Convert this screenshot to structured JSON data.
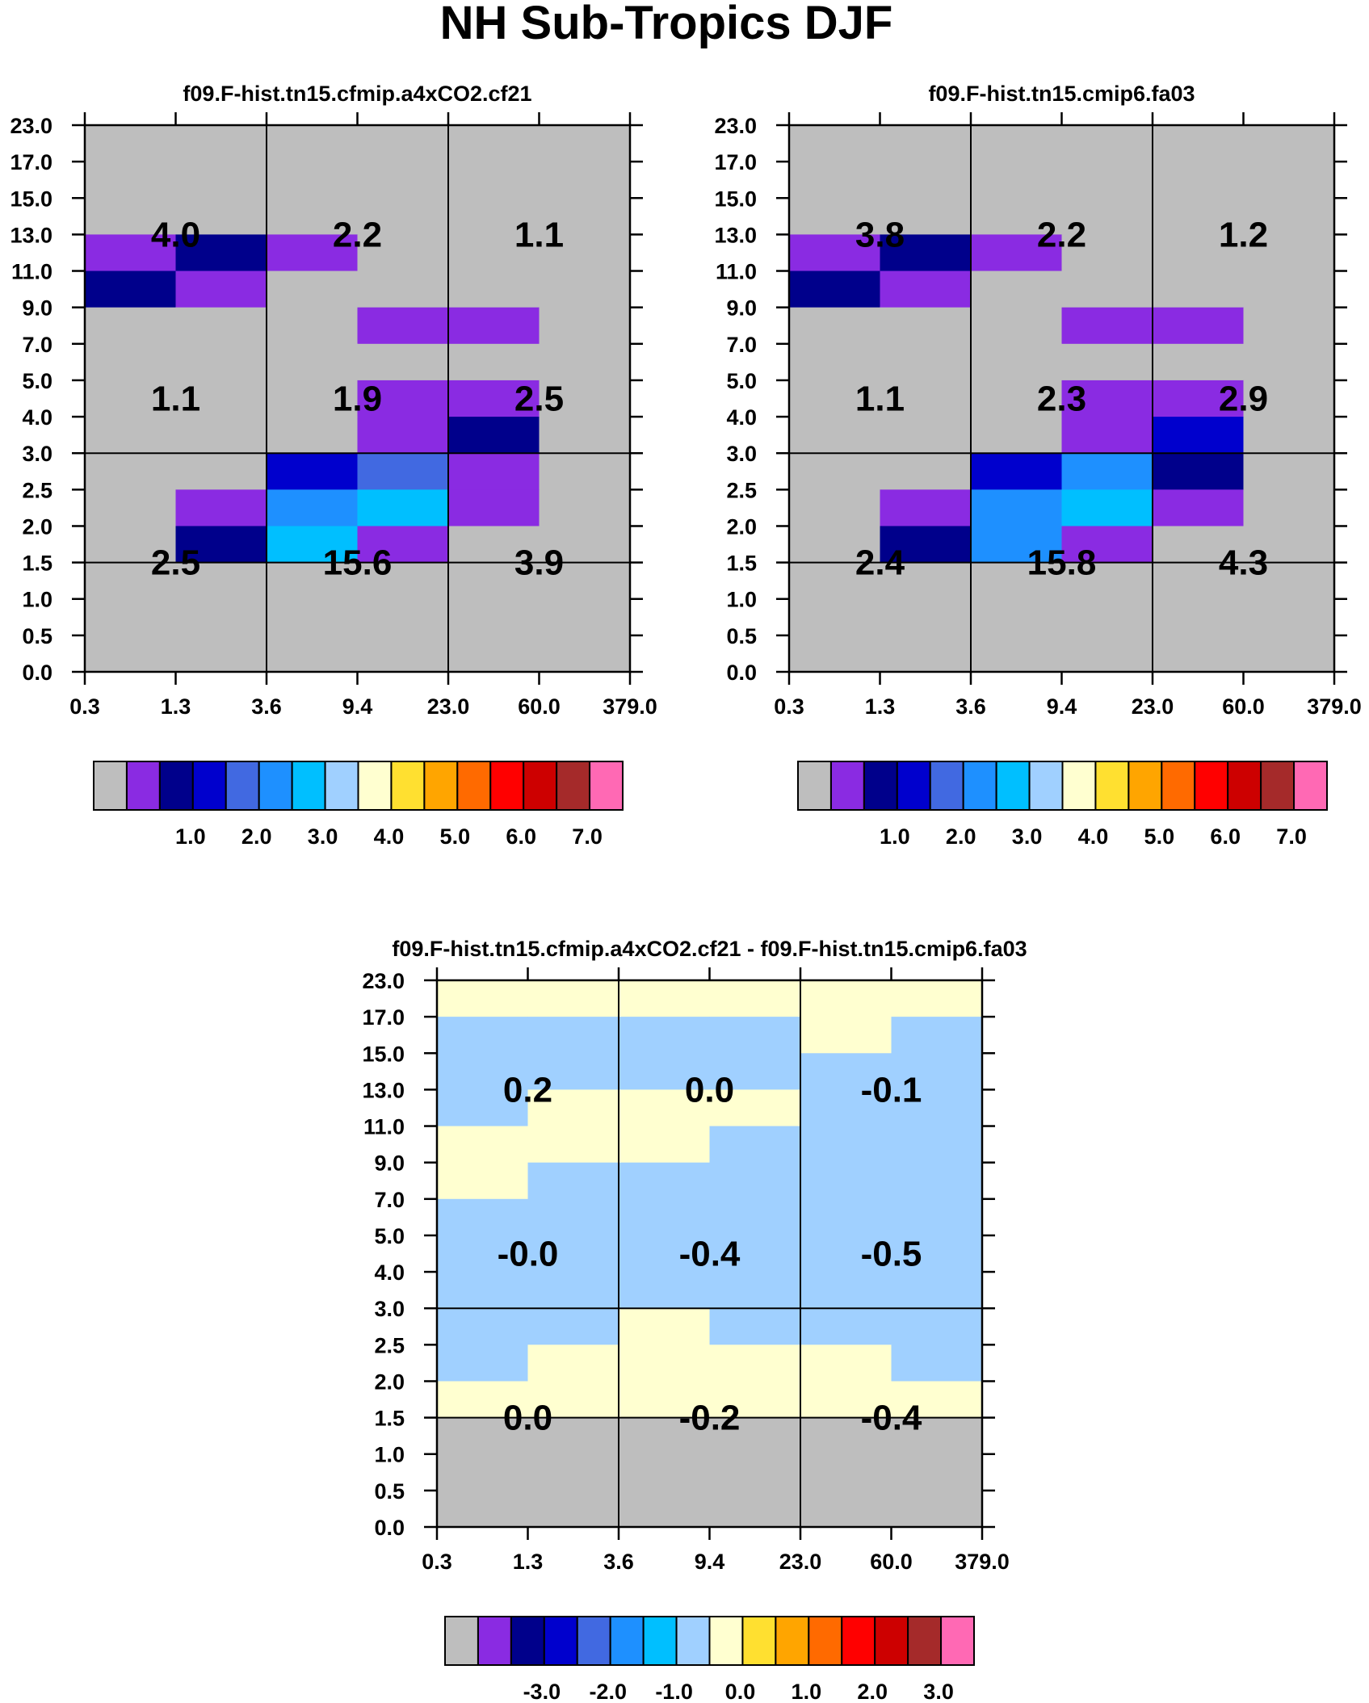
{
  "figure_title": "NH Sub-Tropics DJF",
  "palette": [
    "#bebebe",
    "#8a2be2",
    "#00008b",
    "#0000cd",
    "#4169e1",
    "#1e90ff",
    "#00bfff",
    "#a0d0ff",
    "#ffffd0",
    "#ffe030",
    "#ffa500",
    "#ff6a00",
    "#ff0000",
    "#cd0000",
    "#a52a2a",
    "#ff69b4"
  ],
  "chart_data": [
    {
      "type": "heatmap",
      "title": "f09.F-hist.tn15.cfmip.a4xCO2.cf21",
      "xticks": [
        "0.3",
        "1.3",
        "3.6",
        "9.4",
        "23.0",
        "60.0",
        "379.0"
      ],
      "yticks": [
        "0.0",
        "0.5",
        "1.0",
        "1.5",
        "2.0",
        "2.5",
        "3.0",
        "4.0",
        "5.0",
        "7.0",
        "9.0",
        "11.0",
        "13.0",
        "15.0",
        "17.0",
        "23.0"
      ],
      "cells_rows_top_to_bottom_color_index": [
        [
          0,
          0,
          0,
          0,
          0,
          0
        ],
        [
          0,
          0,
          0,
          0,
          0,
          0
        ],
        [
          0,
          0,
          0,
          0,
          0,
          0
        ],
        [
          1,
          2,
          1,
          0,
          0,
          0
        ],
        [
          2,
          1,
          0,
          0,
          0,
          0
        ],
        [
          0,
          0,
          0,
          1,
          1,
          0
        ],
        [
          0,
          0,
          0,
          0,
          0,
          0
        ],
        [
          0,
          0,
          0,
          1,
          1,
          0
        ],
        [
          0,
          0,
          0,
          1,
          2,
          0
        ],
        [
          0,
          0,
          3,
          4,
          1,
          0
        ],
        [
          0,
          1,
          5,
          6,
          1,
          0
        ],
        [
          0,
          2,
          6,
          1,
          0,
          0
        ]
      ],
      "box_values": [
        [
          "4.0",
          "2.2",
          "1.1"
        ],
        [
          "1.1",
          "1.9",
          "2.5"
        ],
        [
          "2.5",
          "15.6",
          "3.9"
        ]
      ],
      "colorbar": {
        "ticks": [
          "1.0",
          "2.0",
          "3.0",
          "4.0",
          "5.0",
          "6.0",
          "7.0"
        ]
      }
    },
    {
      "type": "heatmap",
      "title": "f09.F-hist.tn15.cmip6.fa03",
      "xticks": [
        "0.3",
        "1.3",
        "3.6",
        "9.4",
        "23.0",
        "60.0",
        "379.0"
      ],
      "yticks": [
        "0.0",
        "0.5",
        "1.0",
        "1.5",
        "2.0",
        "2.5",
        "3.0",
        "4.0",
        "5.0",
        "7.0",
        "9.0",
        "11.0",
        "13.0",
        "15.0",
        "17.0",
        "23.0"
      ],
      "cells_rows_top_to_bottom_color_index": [
        [
          0,
          0,
          0,
          0,
          0,
          0
        ],
        [
          0,
          0,
          0,
          0,
          0,
          0
        ],
        [
          0,
          0,
          0,
          0,
          0,
          0
        ],
        [
          1,
          2,
          1,
          0,
          0,
          0
        ],
        [
          2,
          1,
          0,
          0,
          0,
          0
        ],
        [
          0,
          0,
          0,
          1,
          1,
          0
        ],
        [
          0,
          0,
          0,
          0,
          0,
          0
        ],
        [
          0,
          0,
          0,
          1,
          1,
          0
        ],
        [
          0,
          0,
          0,
          1,
          3,
          0
        ],
        [
          0,
          0,
          3,
          5,
          2,
          0
        ],
        [
          0,
          1,
          5,
          6,
          1,
          0
        ],
        [
          0,
          2,
          5,
          1,
          0,
          0
        ]
      ],
      "box_values": [
        [
          "3.8",
          "2.2",
          "1.2"
        ],
        [
          "1.1",
          "2.3",
          "2.9"
        ],
        [
          "2.4",
          "15.8",
          "4.3"
        ]
      ],
      "colorbar": {
        "ticks": [
          "1.0",
          "2.0",
          "3.0",
          "4.0",
          "5.0",
          "6.0",
          "7.0"
        ]
      }
    },
    {
      "type": "heatmap",
      "title": "f09.F-hist.tn15.cfmip.a4xCO2.cf21 - f09.F-hist.tn15.cmip6.fa03",
      "xticks": [
        "0.3",
        "1.3",
        "3.6",
        "9.4",
        "23.0",
        "60.0",
        "379.0"
      ],
      "yticks": [
        "0.0",
        "0.5",
        "1.0",
        "1.5",
        "2.0",
        "2.5",
        "3.0",
        "4.0",
        "5.0",
        "7.0",
        "9.0",
        "11.0",
        "13.0",
        "15.0",
        "17.0",
        "23.0"
      ],
      "cells_rows_top_to_bottom_color_index": [
        [
          8,
          8,
          8,
          8,
          8,
          8
        ],
        [
          7,
          7,
          7,
          7,
          8,
          7
        ],
        [
          7,
          7,
          7,
          7,
          7,
          7
        ],
        [
          7,
          8,
          8,
          8,
          7,
          7
        ],
        [
          8,
          8,
          8,
          7,
          7,
          7
        ],
        [
          8,
          7,
          7,
          7,
          7,
          7
        ],
        [
          7,
          7,
          7,
          7,
          7,
          7
        ],
        [
          7,
          7,
          7,
          7,
          7,
          7
        ],
        [
          7,
          7,
          7,
          7,
          7,
          7
        ],
        [
          7,
          7,
          8,
          7,
          7,
          7
        ],
        [
          7,
          8,
          8,
          8,
          8,
          7
        ],
        [
          8,
          8,
          8,
          8,
          8,
          8
        ]
      ],
      "box_values": [
        [
          "0.2",
          "0.0",
          "-0.1"
        ],
        [
          "-0.0",
          "-0.4",
          "-0.5"
        ],
        [
          "0.0",
          "-0.2",
          "-0.4"
        ]
      ],
      "colorbar": {
        "ticks": [
          "-3.0",
          "-2.0",
          "-1.0",
          "0.0",
          "1.0",
          "2.0",
          "3.0"
        ]
      }
    }
  ]
}
